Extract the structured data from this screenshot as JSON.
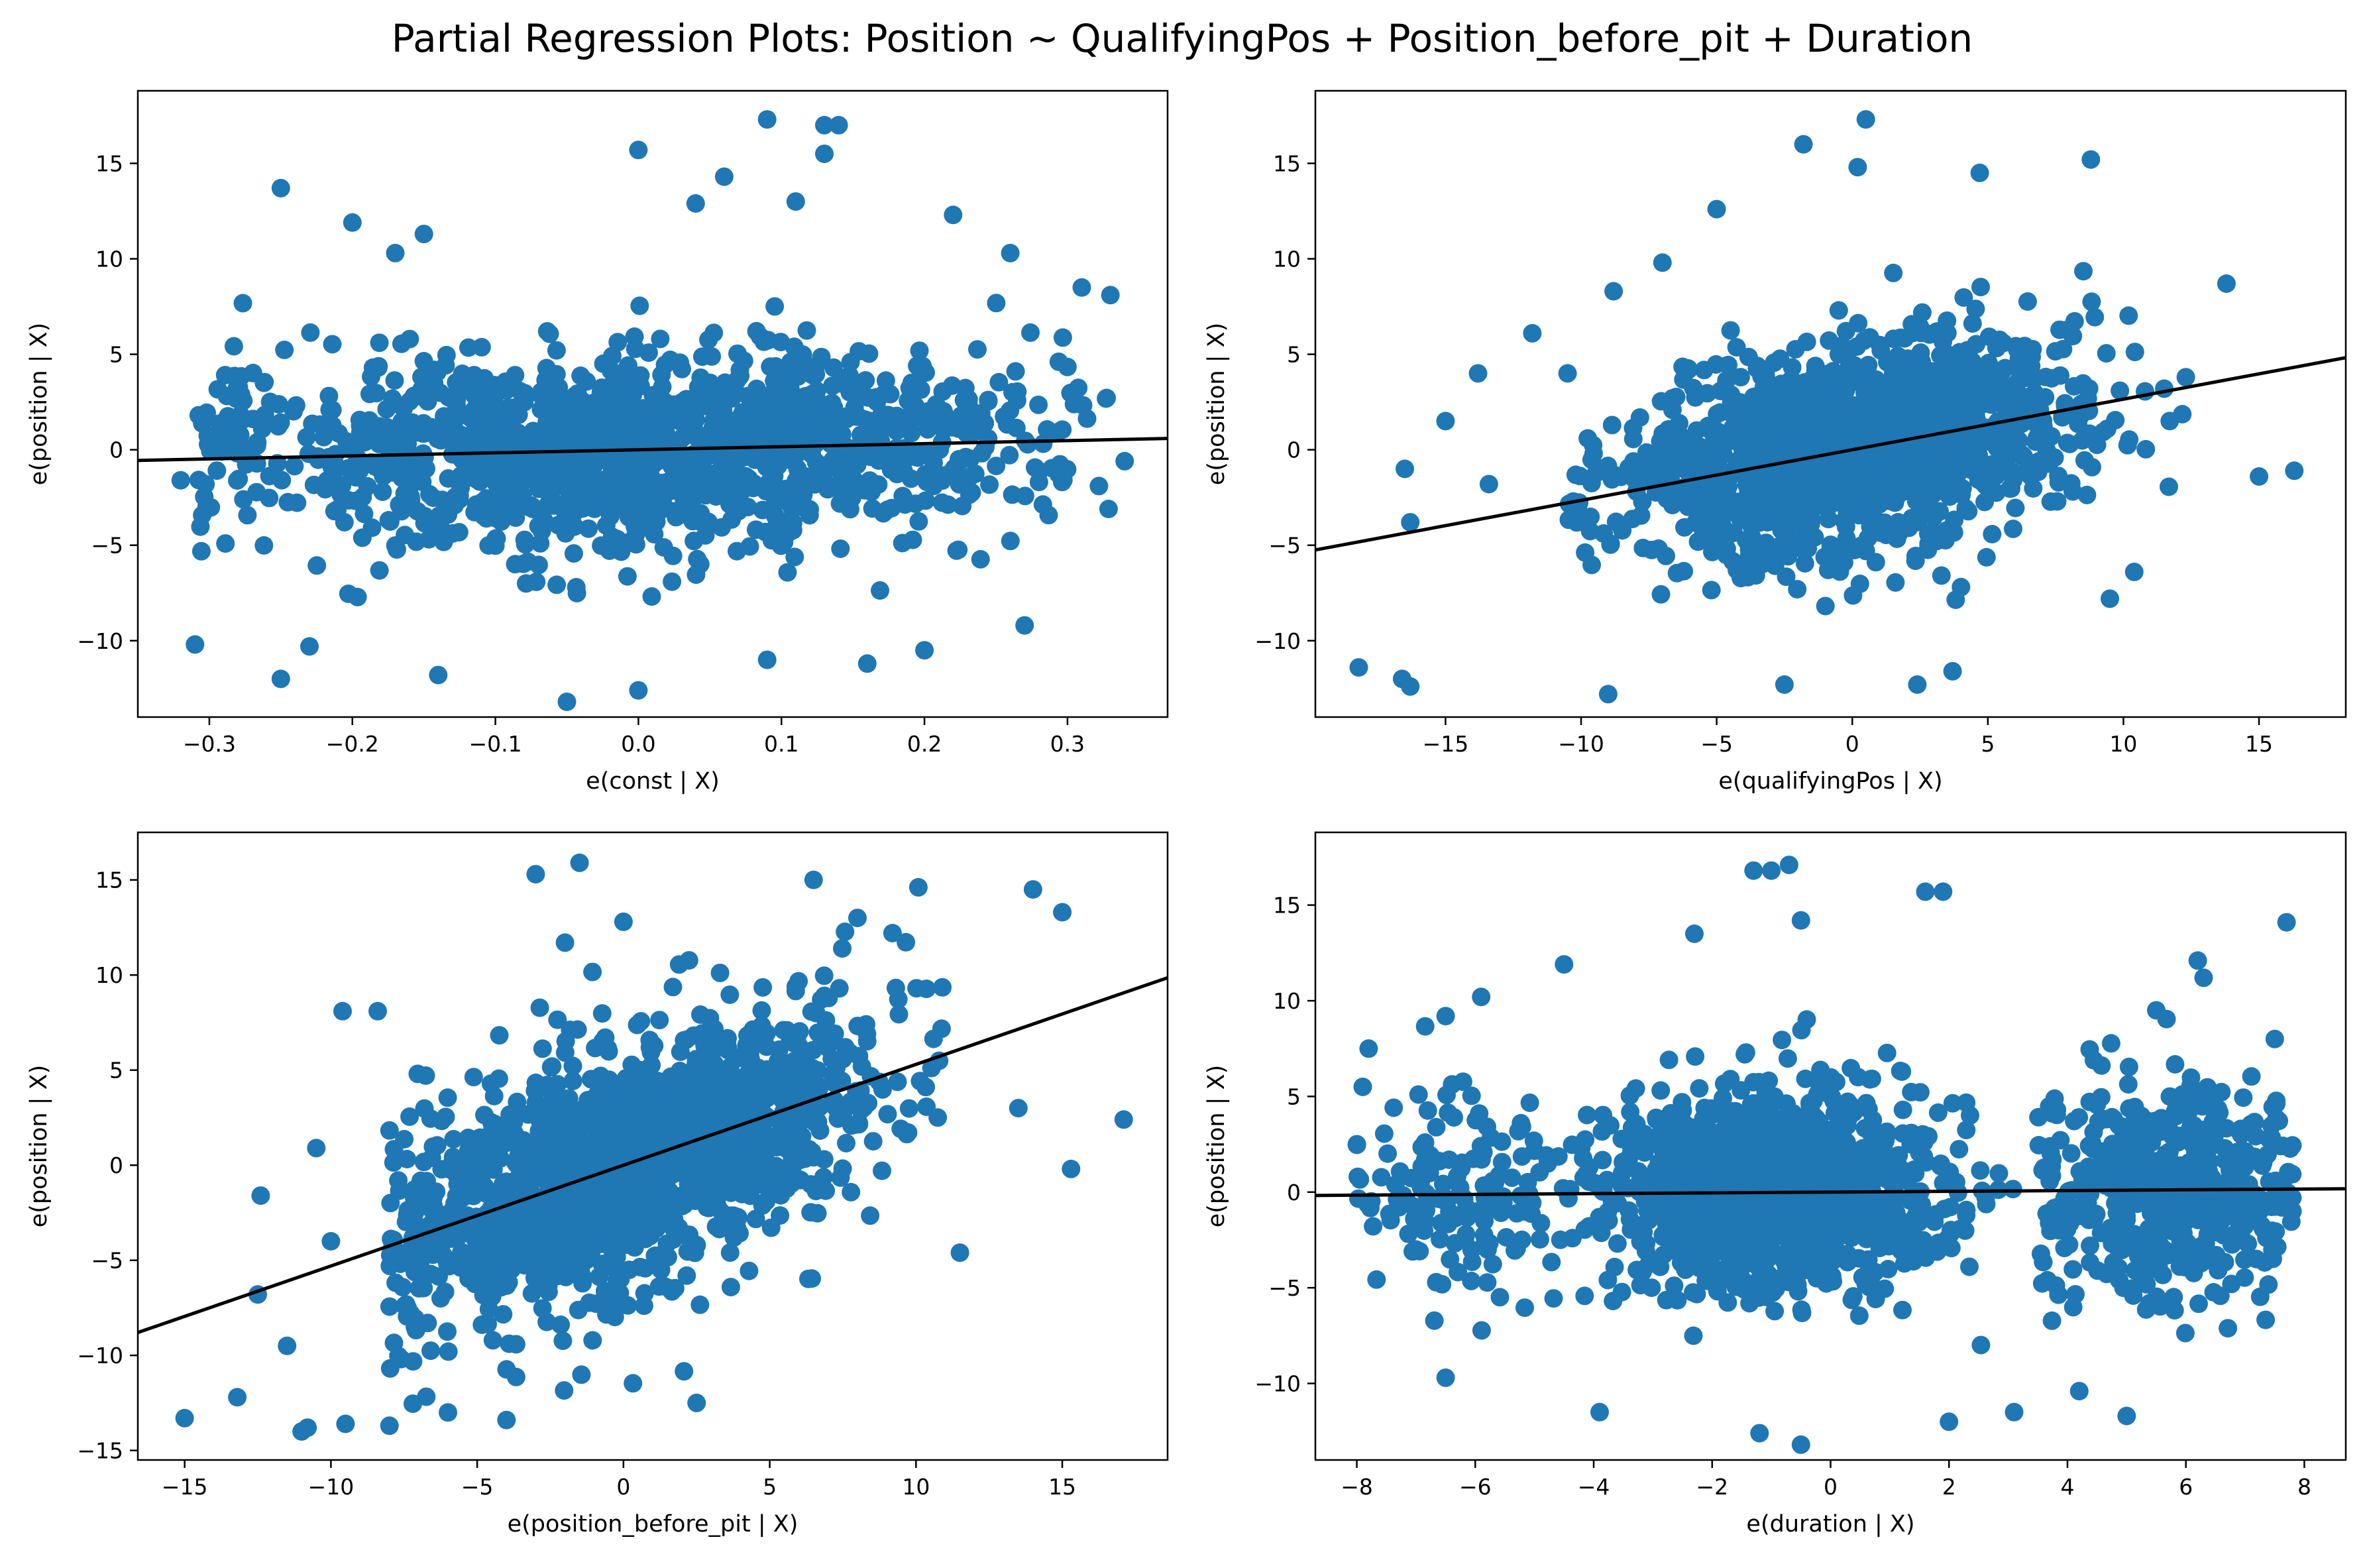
{
  "title": "Partial Regression Plots: Position ~ QualifyingPos + Position_before_pit + Duration",
  "colors": {
    "points": "#1f77b4",
    "fit_line": "#000000",
    "axes": "#000000",
    "background": "#ffffff"
  },
  "chart_data": [
    {
      "type": "scatter",
      "xlabel": "e(const | X)",
      "ylabel": "e(position | X)",
      "xlim": [
        -0.35,
        0.37
      ],
      "ylim": [
        -14,
        18.8
      ],
      "xticks": [
        -0.3,
        -0.2,
        -0.1,
        0.0,
        0.1,
        0.2,
        0.3
      ],
      "xtick_labels": [
        "−0.3",
        "−0.2",
        "−0.1",
        "0.0",
        "0.1",
        "0.2",
        "0.3"
      ],
      "yticks": [
        -10,
        -5,
        0,
        5,
        10,
        15
      ],
      "ytick_labels": [
        "−10",
        "−5",
        "0",
        "5",
        "10",
        "15"
      ],
      "fit_line": {
        "slope": 1.6,
        "intercept": 0.0
      },
      "cloud": {
        "x_center": 0.0,
        "x_sd": 0.14,
        "x_range": [
          -0.31,
          0.33
        ],
        "y_sd": 2.6,
        "count": 1400,
        "seed": 11
      },
      "outliers": [
        [
          0.09,
          17.3
        ],
        [
          0.13,
          17.0
        ],
        [
          0.14,
          17.0
        ],
        [
          0.13,
          15.5
        ],
        [
          0.0,
          15.7
        ],
        [
          -0.25,
          13.7
        ],
        [
          0.22,
          12.3
        ],
        [
          0.11,
          13.0
        ],
        [
          -0.2,
          11.9
        ],
        [
          -0.15,
          11.3
        ],
        [
          0.06,
          14.3
        ],
        [
          0.04,
          12.9
        ],
        [
          -0.05,
          -13.2
        ],
        [
          0.0,
          -12.6
        ],
        [
          -0.25,
          -12.0
        ],
        [
          -0.14,
          -11.8
        ],
        [
          -0.31,
          -10.2
        ],
        [
          0.16,
          -11.2
        ],
        [
          0.27,
          -9.2
        ],
        [
          0.34,
          -0.6
        ],
        [
          0.33,
          8.1
        ],
        [
          -0.32,
          -1.6
        ],
        [
          0.26,
          10.3
        ],
        [
          0.31,
          8.5
        ],
        [
          -0.23,
          -10.3
        ],
        [
          0.2,
          -10.5
        ],
        [
          0.09,
          -11.0
        ],
        [
          -0.17,
          10.3
        ]
      ]
    },
    {
      "type": "scatter",
      "xlabel": "e(qualifyingPos | X)",
      "ylabel": "e(position | X)",
      "xlim": [
        -19.8,
        18.2
      ],
      "ylim": [
        -14,
        18.8
      ],
      "xticks": [
        -15,
        -10,
        -5,
        0,
        5,
        10,
        15
      ],
      "xtick_labels": [
        "−15",
        "−10",
        "−5",
        "0",
        "5",
        "10",
        "15"
      ],
      "yticks": [
        -10,
        -5,
        0,
        5,
        10,
        15
      ],
      "ytick_labels": [
        "−10",
        "−5",
        "0",
        "5",
        "10",
        "15"
      ],
      "fit_line": {
        "slope": 0.265,
        "intercept": 0.0
      },
      "cloud": {
        "x_center": 0.0,
        "x_sd": 4.2,
        "x_range": [
          -10.5,
          12.5
        ],
        "y_sd": 2.6,
        "count": 1400,
        "seed": 23
      },
      "outliers": [
        [
          0.5,
          17.3
        ],
        [
          -1.8,
          16.0
        ],
        [
          0.2,
          14.8
        ],
        [
          4.7,
          14.5
        ],
        [
          8.8,
          15.2
        ],
        [
          -18.2,
          -11.4
        ],
        [
          -16.6,
          -12.0
        ],
        [
          -16.3,
          -12.4
        ],
        [
          -16.5,
          -1.0
        ],
        [
          -16.3,
          -3.8
        ],
        [
          -13.4,
          -1.8
        ],
        [
          16.3,
          -1.1
        ],
        [
          15.0,
          -1.4
        ],
        [
          13.8,
          8.7
        ],
        [
          12.3,
          3.8
        ],
        [
          -9.0,
          -12.8
        ],
        [
          -2.5,
          -12.3
        ],
        [
          -11.8,
          6.1
        ],
        [
          -8.8,
          8.3
        ],
        [
          2.4,
          -12.3
        ],
        [
          3.7,
          -11.6
        ],
        [
          -13.8,
          4.0
        ],
        [
          -10.5,
          4.0
        ],
        [
          -15.0,
          1.5
        ],
        [
          10.4,
          -6.4
        ],
        [
          9.5,
          -7.8
        ],
        [
          -7.0,
          9.8
        ],
        [
          -5.0,
          12.6
        ]
      ]
    },
    {
      "type": "scatter",
      "xlabel": "e(position_before_pit | X)",
      "ylabel": "e(position | X)",
      "xlim": [
        -16.6,
        18.6
      ],
      "ylim": [
        -15.5,
        17.5
      ],
      "xticks": [
        -15,
        -10,
        -5,
        0,
        5,
        10,
        15
      ],
      "xtick_labels": [
        "−15",
        "−10",
        "−5",
        "0",
        "5",
        "10",
        "15"
      ],
      "yticks": [
        -15,
        -10,
        -5,
        0,
        5,
        10,
        15
      ],
      "ytick_labels": [
        "−15",
        "−10",
        "−5",
        "0",
        "5",
        "10",
        "15"
      ],
      "fit_line": {
        "slope": 0.53,
        "intercept": 0.0
      },
      "cloud": {
        "x_center": 0.5,
        "x_sd": 4.3,
        "x_range": [
          -8.0,
          11.0
        ],
        "y_sd": 3.2,
        "count": 1500,
        "seed": 37
      },
      "outliers": [
        [
          -15.0,
          -13.3
        ],
        [
          -13.2,
          -12.2
        ],
        [
          -12.5,
          -6.8
        ],
        [
          -12.4,
          -1.6
        ],
        [
          -11.0,
          -14.0
        ],
        [
          -10.8,
          -13.8
        ],
        [
          -9.5,
          -13.6
        ],
        [
          -8.0,
          -13.7
        ],
        [
          -4.0,
          -13.4
        ],
        [
          -1.5,
          15.9
        ],
        [
          -3.0,
          15.3
        ],
        [
          17.1,
          2.4
        ],
        [
          15.3,
          -0.2
        ],
        [
          14.0,
          14.5
        ],
        [
          15.0,
          13.3
        ],
        [
          6.5,
          15.0
        ],
        [
          -10.5,
          0.9
        ],
        [
          -9.6,
          8.1
        ],
        [
          -8.4,
          8.1
        ],
        [
          11.5,
          -4.6
        ],
        [
          13.5,
          3.0
        ],
        [
          0.0,
          12.8
        ],
        [
          -2.0,
          11.7
        ],
        [
          8.0,
          13.0
        ],
        [
          -11.5,
          -9.5
        ],
        [
          -6.0,
          -13.0
        ],
        [
          2.5,
          -12.5
        ],
        [
          -10.0,
          -4.0
        ]
      ]
    },
    {
      "type": "scatter",
      "xlabel": "e(duration | X)",
      "ylabel": "e(position | X)",
      "xlim": [
        -8.7,
        8.7
      ],
      "ylim": [
        -14,
        18.8
      ],
      "xticks": [
        -8,
        -6,
        -4,
        -2,
        0,
        2,
        4,
        6,
        8
      ],
      "xtick_labels": [
        "−8",
        "−6",
        "−4",
        "−2",
        "0",
        "2",
        "4",
        "6",
        "8"
      ],
      "yticks": [
        -10,
        -5,
        0,
        5,
        10,
        15
      ],
      "ytick_labels": [
        "−10",
        "−5",
        "0",
        "5",
        "10",
        "15"
      ],
      "fit_line": {
        "slope": 0.02,
        "intercept": 0.0
      },
      "cloud_groups": [
        {
          "x_center": -1.0,
          "x_sd": 1.45,
          "x_range": [
            -5.2,
            3.3
          ],
          "count": 1200
        },
        {
          "x_center": 5.8,
          "x_sd": 1.1,
          "x_range": [
            3.5,
            7.8
          ],
          "count": 550
        },
        {
          "x_center": -6.3,
          "x_sd": 0.8,
          "x_range": [
            -8.0,
            -5.0
          ],
          "count": 140
        }
      ],
      "cloud": {
        "y_sd": 2.6,
        "seed": 53
      },
      "outliers": [
        [
          -0.7,
          17.1
        ],
        [
          -1.3,
          16.8
        ],
        [
          -1.0,
          16.8
        ],
        [
          1.6,
          15.7
        ],
        [
          1.9,
          15.7
        ],
        [
          -0.5,
          14.2
        ],
        [
          7.7,
          14.1
        ],
        [
          6.2,
          12.1
        ],
        [
          6.3,
          11.2
        ],
        [
          -0.5,
          -13.2
        ],
        [
          -1.2,
          -12.6
        ],
        [
          5.0,
          -11.7
        ],
        [
          3.1,
          -11.5
        ],
        [
          -8.0,
          2.5
        ],
        [
          -7.8,
          7.5
        ],
        [
          7.8,
          -1.0
        ],
        [
          -6.5,
          9.2
        ],
        [
          -6.5,
          -9.7
        ],
        [
          -2.3,
          13.5
        ],
        [
          2.0,
          -12.0
        ],
        [
          4.2,
          -10.4
        ],
        [
          -4.5,
          11.9
        ],
        [
          -7.9,
          5.5
        ],
        [
          7.5,
          8.0
        ],
        [
          -3.9,
          -11.5
        ],
        [
          5.5,
          9.5
        ],
        [
          -5.9,
          10.2
        ],
        [
          -7.0,
          -3.0
        ]
      ]
    }
  ]
}
